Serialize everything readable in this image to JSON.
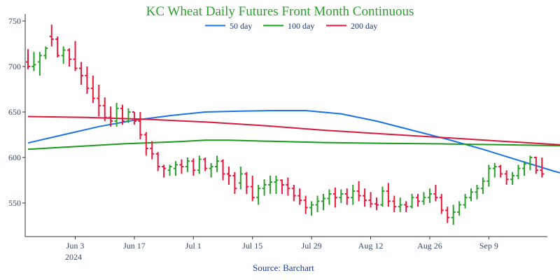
{
  "chart_data": {
    "type": "ohlc",
    "title": "KC Wheat Daily Futures Front Month Continuous",
    "source": "Source: Barchart",
    "x_axis": {
      "ticks": [
        "Jun 3",
        "Jun 17",
        "Jul 1",
        "Jul 15",
        "Jul 29",
        "Aug 12",
        "Aug 26",
        "Sep 9"
      ],
      "year_label": "2024"
    },
    "y_axis": {
      "ticks": [
        550,
        600,
        650,
        700,
        750
      ],
      "range": [
        515,
        755
      ]
    },
    "colors": {
      "up": "#2ca02c",
      "down": "#e8193c",
      "axis": "#333333",
      "title": "#2ca02c"
    },
    "legend": [
      "50 day",
      "100 day",
      "200 day"
    ],
    "series": [
      {
        "name": "50 day",
        "color": "#1a73e8",
        "points": [
          [
            0,
            616
          ],
          [
            6,
            625
          ],
          [
            12,
            634
          ],
          [
            18,
            641
          ],
          [
            24,
            646
          ],
          [
            30,
            650
          ],
          [
            36,
            651
          ],
          [
            42,
            651.5
          ],
          [
            47,
            651.5
          ],
          [
            53,
            648
          ],
          [
            59,
            640
          ],
          [
            65,
            630
          ],
          [
            71,
            620
          ],
          [
            77,
            609
          ],
          [
            83,
            597
          ],
          [
            89,
            585
          ],
          [
            95,
            575
          ],
          [
            101,
            568
          ],
          [
            107,
            564
          ],
          [
            113,
            563
          ],
          [
            118,
            563
          ],
          [
            123,
            562.5
          ],
          [
            126,
            562.5
          ]
        ]
      },
      {
        "name": "100 day",
        "color": "#1c9a1c",
        "points": [
          [
            0,
            609
          ],
          [
            8,
            612
          ],
          [
            16,
            615
          ],
          [
            24,
            617
          ],
          [
            30,
            619
          ],
          [
            34,
            619
          ],
          [
            40,
            618
          ],
          [
            50,
            616.5
          ],
          [
            60,
            615.5
          ],
          [
            70,
            615
          ],
          [
            80,
            614
          ],
          [
            90,
            613
          ],
          [
            100,
            611
          ],
          [
            110,
            609
          ],
          [
            120,
            607
          ],
          [
            126,
            606.5
          ]
        ]
      },
      {
        "name": "200 day",
        "color": "#d81b3c",
        "points": [
          [
            0,
            645
          ],
          [
            10,
            644
          ],
          [
            20,
            642
          ],
          [
            30,
            639
          ],
          [
            40,
            635
          ],
          [
            50,
            630
          ],
          [
            60,
            626
          ],
          [
            70,
            622
          ],
          [
            80,
            618
          ],
          [
            90,
            614
          ],
          [
            100,
            611
          ],
          [
            110,
            608
          ],
          [
            120,
            606
          ],
          [
            126,
            605
          ]
        ]
      }
    ],
    "bars": [
      [
        0,
        705,
        719,
        697,
        700
      ],
      [
        1,
        700,
        716,
        695,
        702
      ],
      [
        2,
        705,
        716,
        690,
        712
      ],
      [
        3,
        712,
        722,
        708,
        720
      ],
      [
        4,
        733,
        746,
        722,
        730
      ],
      [
        5,
        730,
        733,
        710,
        712
      ],
      [
        6,
        712,
        722,
        703,
        718
      ],
      [
        7,
        718,
        720,
        700,
        708
      ],
      [
        8,
        708,
        728,
        695,
        698
      ],
      [
        9,
        698,
        705,
        680,
        690
      ],
      [
        10,
        690,
        700,
        670,
        676
      ],
      [
        11,
        676,
        690,
        660,
        665
      ],
      [
        12,
        665,
        680,
        645,
        657
      ],
      [
        13,
        657,
        666,
        640,
        644
      ],
      [
        14,
        644,
        656,
        634,
        640
      ],
      [
        15,
        640,
        660,
        634,
        654
      ],
      [
        16,
        654,
        658,
        636,
        640
      ],
      [
        17,
        640,
        654,
        638,
        650
      ],
      [
        18,
        650,
        650,
        636,
        640
      ],
      [
        19,
        640,
        650,
        620,
        625
      ],
      [
        20,
        625,
        628,
        602,
        610
      ],
      [
        21,
        610,
        618,
        598,
        604
      ],
      [
        22,
        604,
        606,
        585,
        590
      ],
      [
        23,
        590,
        592,
        578,
        588
      ],
      [
        24,
        586,
        592,
        580,
        590
      ],
      [
        25,
        588,
        596,
        580,
        592
      ],
      [
        26,
        592,
        598,
        582,
        590
      ],
      [
        27,
        590,
        600,
        584,
        596
      ],
      [
        28,
        596,
        599,
        580,
        586
      ],
      [
        29,
        586,
        602,
        582,
        598
      ],
      [
        30,
        598,
        600,
        585,
        588
      ],
      [
        31,
        588,
        594,
        578,
        590
      ],
      [
        32,
        590,
        602,
        584,
        596
      ],
      [
        33,
        596,
        598,
        575,
        582
      ],
      [
        34,
        582,
        590,
        570,
        580
      ],
      [
        35,
        580,
        584,
        560,
        566
      ],
      [
        36,
        572,
        590,
        565,
        582
      ],
      [
        37,
        582,
        584,
        560,
        568
      ],
      [
        38,
        568,
        580,
        552,
        556
      ],
      [
        39,
        556,
        570,
        548,
        566
      ],
      [
        40,
        566,
        576,
        558,
        570
      ],
      [
        41,
        570,
        580,
        560,
        573
      ],
      [
        42,
        573,
        580,
        560,
        575
      ],
      [
        43,
        575,
        576,
        560,
        570
      ],
      [
        44,
        570,
        578,
        558,
        566
      ],
      [
        45,
        566,
        570,
        552,
        558
      ],
      [
        46,
        558,
        566,
        548,
        553
      ],
      [
        47,
        553,
        558,
        538,
        545
      ],
      [
        48,
        545,
        552,
        536,
        548
      ],
      [
        49,
        548,
        558,
        540,
        552
      ],
      [
        50,
        552,
        560,
        542,
        555
      ],
      [
        51,
        555,
        565,
        548,
        560
      ],
      [
        52,
        560,
        567,
        545,
        556
      ],
      [
        53,
        556,
        565,
        550,
        560
      ],
      [
        54,
        560,
        566,
        548,
        556
      ],
      [
        55,
        556,
        570,
        548,
        563
      ],
      [
        56,
        563,
        574,
        552,
        558
      ],
      [
        57,
        558,
        566,
        546,
        553
      ],
      [
        58,
        553,
        562,
        545,
        549
      ],
      [
        59,
        549,
        556,
        542,
        548
      ],
      [
        60,
        548,
        568,
        546,
        563
      ],
      [
        61,
        563,
        572,
        546,
        552
      ],
      [
        62,
        552,
        558,
        540,
        546
      ],
      [
        63,
        546,
        556,
        540,
        548
      ],
      [
        64,
        548,
        552,
        540,
        546
      ],
      [
        65,
        546,
        560,
        544,
        556
      ],
      [
        66,
        556,
        560,
        546,
        552
      ],
      [
        67,
        552,
        562,
        548,
        556
      ],
      [
        68,
        556,
        566,
        550,
        560
      ],
      [
        69,
        560,
        570,
        552,
        556
      ],
      [
        70,
        556,
        560,
        538,
        542
      ],
      [
        71,
        542,
        546,
        528,
        534
      ],
      [
        72,
        534,
        548,
        526,
        540
      ],
      [
        73,
        540,
        552,
        536,
        548
      ],
      [
        74,
        548,
        560,
        544,
        556
      ],
      [
        75,
        556,
        566,
        552,
        562
      ],
      [
        76,
        562,
        570,
        554,
        566
      ],
      [
        77,
        566,
        578,
        560,
        574
      ],
      [
        78,
        574,
        592,
        568,
        588
      ],
      [
        79,
        588,
        594,
        578,
        590
      ],
      [
        80,
        590,
        592,
        578,
        582
      ],
      [
        81,
        582,
        586,
        570,
        576
      ],
      [
        82,
        576,
        584,
        570,
        580
      ],
      [
        83,
        580,
        592,
        576,
        588
      ],
      [
        84,
        588,
        596,
        580,
        593
      ],
      [
        85,
        593,
        602,
        586,
        600
      ],
      [
        86,
        600,
        601,
        582,
        586
      ],
      [
        87,
        586,
        600,
        578,
        582
      ]
    ]
  }
}
